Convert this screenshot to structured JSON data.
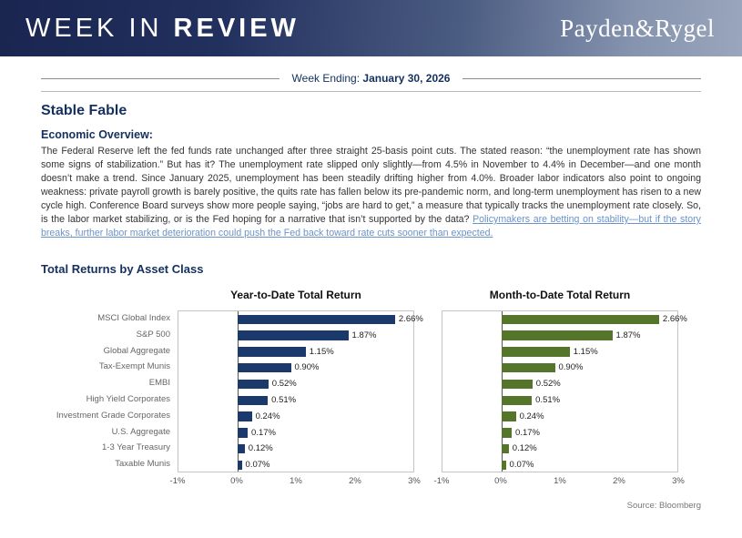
{
  "header": {
    "title_part1": "WEEK IN",
    "title_part2": "REVIEW",
    "brand": "Payden&Rygel"
  },
  "week_ending": {
    "label": "Week Ending:",
    "date": "January 30, 2026"
  },
  "article": {
    "title": "Stable Fable",
    "section_heading": "Economic Overview:",
    "body": "The Federal Reserve left the fed funds rate unchanged after three straight 25-basis point cuts. The stated reason: “the unemployment rate has shown some signs of stabilization.” But has it? The unemployment rate slipped only slightly—from 4.5% in November to 4.4% in December—and one month doesn’t make a trend. Since January 2025, unemployment has been steadily drifting higher from 4.0%. Broader labor indicators also point to ongoing weakness: private payroll growth is barely positive, the quits rate has fallen below its pre-pandemic norm, and long-term unemployment has risen to a new cycle high. Conference Board surveys show more people saying, “jobs are hard to get,” a measure that typically tracks the unemployment rate closely. So, is the labor market stabilizing, or is the Fed hoping for a narrative that isn’t supported by the data? ",
    "link_text": "Policymakers are betting on stability—but if the story breaks, further labor market deterioration could push the Fed back toward rate cuts sooner than expected."
  },
  "returns_section": {
    "heading": "Total Returns by Asset Class",
    "source": "Source: Bloomberg"
  },
  "colors": {
    "navy": "#13305e",
    "link_blue": "#6b93c9",
    "ytd_bar": "#1b3a6b",
    "mtd_bar": "#54752a"
  },
  "chart_data": [
    {
      "type": "bar",
      "orientation": "horizontal",
      "title": "Year-to-Date Total Return",
      "categories": [
        "MSCI Global Index",
        "S&P 500",
        "Global Aggregate",
        "Tax-Exempt Munis",
        "EMBI",
        "High Yield Corporates",
        "Investment Grade Corporates",
        "U.S. Aggregate",
        "1-3 Year Treasury",
        "Taxable Munis"
      ],
      "values": [
        2.66,
        1.87,
        1.15,
        0.9,
        0.52,
        0.51,
        0.24,
        0.17,
        0.12,
        0.07
      ],
      "value_labels": [
        "2.66%",
        "1.87%",
        "1.15%",
        "0.90%",
        "0.52%",
        "0.51%",
        "0.24%",
        "0.17%",
        "0.12%",
        "0.07%"
      ],
      "x_ticks": [
        "-1%",
        "0%",
        "1%",
        "2%",
        "3%"
      ],
      "xlim": [
        -1,
        3
      ],
      "grid": false,
      "bar_color": "#1b3a6b"
    },
    {
      "type": "bar",
      "orientation": "horizontal",
      "title": "Month-to-Date Total Return",
      "categories": [
        "MSCI Global Index",
        "S&P 500",
        "Global Aggregate",
        "Tax-Exempt Munis",
        "EMBI",
        "High Yield Corporates",
        "Investment Grade Corporates",
        "U.S. Aggregate",
        "1-3 Year Treasury",
        "Taxable Munis"
      ],
      "values": [
        2.66,
        1.87,
        1.15,
        0.9,
        0.52,
        0.51,
        0.24,
        0.17,
        0.12,
        0.07
      ],
      "value_labels": [
        "2.66%",
        "1.87%",
        "1.15%",
        "0.90%",
        "0.52%",
        "0.51%",
        "0.24%",
        "0.17%",
        "0.12%",
        "0.07%"
      ],
      "x_ticks": [
        "-1%",
        "0%",
        "1%",
        "2%",
        "3%"
      ],
      "xlim": [
        -1,
        3
      ],
      "grid": false,
      "bar_color": "#54752a"
    }
  ]
}
